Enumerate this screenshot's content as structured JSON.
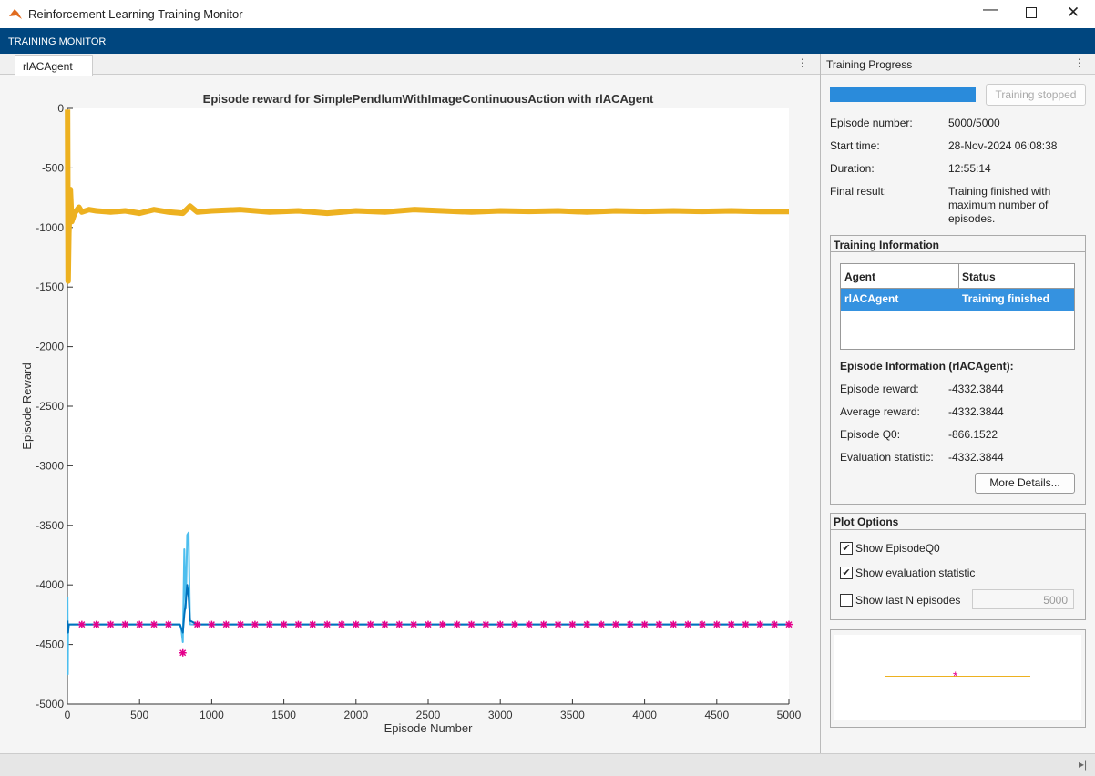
{
  "window": {
    "title": "Reinforcement Learning Training Monitor"
  },
  "toolstrip": {
    "tab": "TRAINING MONITOR"
  },
  "document_tab": "rlACAgent",
  "chart_data": {
    "type": "line",
    "title": "Episode reward for SimplePendlumWithImageContinuousAction with rlACAgent",
    "xlabel": "Episode Number",
    "ylabel": "Episode Reward",
    "xlim": [
      0,
      5000
    ],
    "ylim": [
      -5000,
      0
    ],
    "xticks": [
      0,
      500,
      1000,
      1500,
      2000,
      2500,
      3000,
      3500,
      4000,
      4500,
      5000
    ],
    "yticks": [
      -5000,
      -4500,
      -4000,
      -3500,
      -3000,
      -2500,
      -2000,
      -1500,
      -1000,
      -500,
      0
    ],
    "series": [
      {
        "color": "#edb120",
        "x": [
          1,
          5,
          10,
          20,
          30,
          50,
          80,
          100,
          150,
          200,
          300,
          400,
          500,
          600,
          700,
          800,
          850,
          900,
          1000,
          1200,
          1400,
          1600,
          1800,
          2000,
          2200,
          2400,
          2600,
          2800,
          3000,
          3200,
          3400,
          3600,
          3800,
          4000,
          4200,
          4400,
          4600,
          4800,
          5000
        ],
        "values": [
          -10,
          -1450,
          -1050,
          -680,
          -950,
          -880,
          -830,
          -870,
          -850,
          -860,
          -870,
          -860,
          -880,
          -850,
          -870,
          -880,
          -820,
          -870,
          -860,
          -850,
          -870,
          -860,
          -880,
          -860,
          -870,
          -850,
          -860,
          -870,
          -860,
          -865,
          -860,
          -870,
          -860,
          -865,
          -860,
          -865,
          -860,
          -866,
          -866
        ]
      },
      {
        "color": "#4dbeee",
        "x": [
          1,
          3,
          5,
          10,
          20,
          50,
          100,
          200,
          300,
          400,
          500,
          600,
          700,
          780,
          790,
          800,
          810,
          820,
          830,
          840,
          850,
          860,
          900,
          1000,
          2000,
          3000,
          4000,
          5000
        ],
        "values": [
          -4100,
          -4750,
          -4330,
          -4332,
          -4332,
          -4332,
          -4332,
          -4332,
          -4332,
          -4332,
          -4332,
          -4332,
          -4332,
          -4332,
          -4380,
          -4480,
          -3700,
          -4200,
          -3580,
          -3560,
          -4330,
          -4332,
          -4332,
          -4332,
          -4332,
          -4332,
          -4332,
          -4332
        ]
      },
      {
        "color": "#0072bd",
        "x": [
          1,
          5,
          10,
          50,
          100,
          500,
          780,
          800,
          810,
          820,
          830,
          840,
          850,
          900,
          1000,
          2000,
          3000,
          4000,
          5000
        ],
        "values": [
          -4300,
          -4400,
          -4332,
          -4332,
          -4332,
          -4332,
          -4332,
          -4400,
          -4250,
          -4150,
          -4000,
          -4100,
          -4300,
          -4332,
          -4332,
          -4332,
          -4332,
          -4332,
          -4332
        ]
      },
      {
        "color": "#e5008c",
        "marker": "asterisk",
        "x": [
          100,
          200,
          300,
          400,
          500,
          600,
          700,
          800,
          900,
          1000,
          1100,
          1200,
          1300,
          1400,
          1500,
          1600,
          1700,
          1800,
          1900,
          2000,
          2100,
          2200,
          2300,
          2400,
          2500,
          2600,
          2700,
          2800,
          2900,
          3000,
          3100,
          3200,
          3300,
          3400,
          3500,
          3600,
          3700,
          3800,
          3900,
          4000,
          4100,
          4200,
          4300,
          4400,
          4500,
          4600,
          4700,
          4800,
          4900,
          5000
        ],
        "values": [
          -4332,
          -4332,
          -4332,
          -4332,
          -4332,
          -4332,
          -4332,
          -4570,
          -4332,
          -4332,
          -4332,
          -4332,
          -4332,
          -4332,
          -4332,
          -4332,
          -4332,
          -4332,
          -4332,
          -4332,
          -4332,
          -4332,
          -4332,
          -4332,
          -4332,
          -4332,
          -4332,
          -4332,
          -4332,
          -4332,
          -4332,
          -4332,
          -4332,
          -4332,
          -4332,
          -4332,
          -4332,
          -4332,
          -4332,
          -4332,
          -4332,
          -4332,
          -4332,
          -4332,
          -4332,
          -4332,
          -4332,
          -4332,
          -4332,
          -4332
        ]
      }
    ]
  },
  "training_progress": {
    "title": "Training Progress",
    "button": "Training stopped",
    "fields": [
      {
        "label": "Episode number:",
        "value": "5000/5000"
      },
      {
        "label": "Start time:",
        "value": "28-Nov-2024 06:08:38"
      },
      {
        "label": "Duration:",
        "value": "12:55:14"
      },
      {
        "label": "Final result:",
        "value": "Training finished with maximum number of episodes."
      }
    ]
  },
  "training_information": {
    "title": "Training Information",
    "headers": [
      "Agent",
      "Status"
    ],
    "rows": [
      [
        "rlACAgent",
        "Training finished"
      ]
    ],
    "episode_info_title": "Episode Information (rlACAgent):",
    "fields": [
      {
        "label": "Episode reward:",
        "value": "-4332.3844"
      },
      {
        "label": "Average reward:",
        "value": "-4332.3844"
      },
      {
        "label": "Episode Q0:",
        "value": "-866.1522"
      },
      {
        "label": "Evaluation statistic:",
        "value": "-4332.3844"
      }
    ],
    "button": "More Details..."
  },
  "plot_options": {
    "title": "Plot Options",
    "options": [
      {
        "label": "Show EpisodeQ0",
        "checked": true
      },
      {
        "label": "Show evaluation statistic",
        "checked": true
      },
      {
        "label": "Show last N episodes",
        "checked": false
      }
    ],
    "last_n": "5000"
  }
}
